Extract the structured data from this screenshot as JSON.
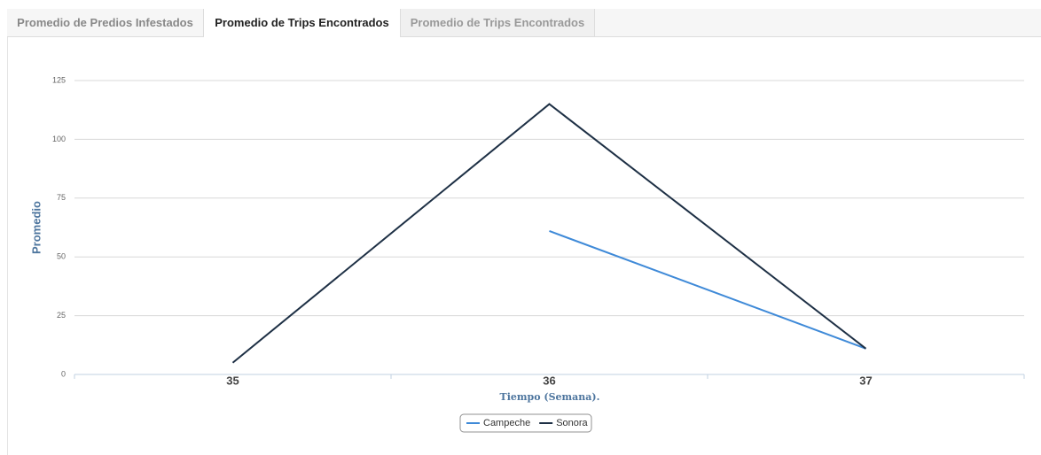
{
  "tabs": [
    "Promedio de Predios Infestados",
    "Promedio de Trips Encontrados",
    "Promedio de Trips Encontrados"
  ],
  "chart_data": {
    "type": "line",
    "categories": [
      "35",
      "36",
      "37"
    ],
    "series": [
      {
        "name": "Campeche",
        "color": "#3f8ad8",
        "values": [
          null,
          61,
          11
        ]
      },
      {
        "name": "Sonora",
        "color": "#1e3045",
        "values": [
          5,
          115,
          11
        ]
      }
    ],
    "ylim": [
      0,
      125
    ],
    "yticks": [
      0,
      25,
      50,
      75,
      100,
      125
    ],
    "grid": true,
    "x_label": "Tiempo (Semana).",
    "y_label": "Promedio",
    "legend": "bottom"
  }
}
